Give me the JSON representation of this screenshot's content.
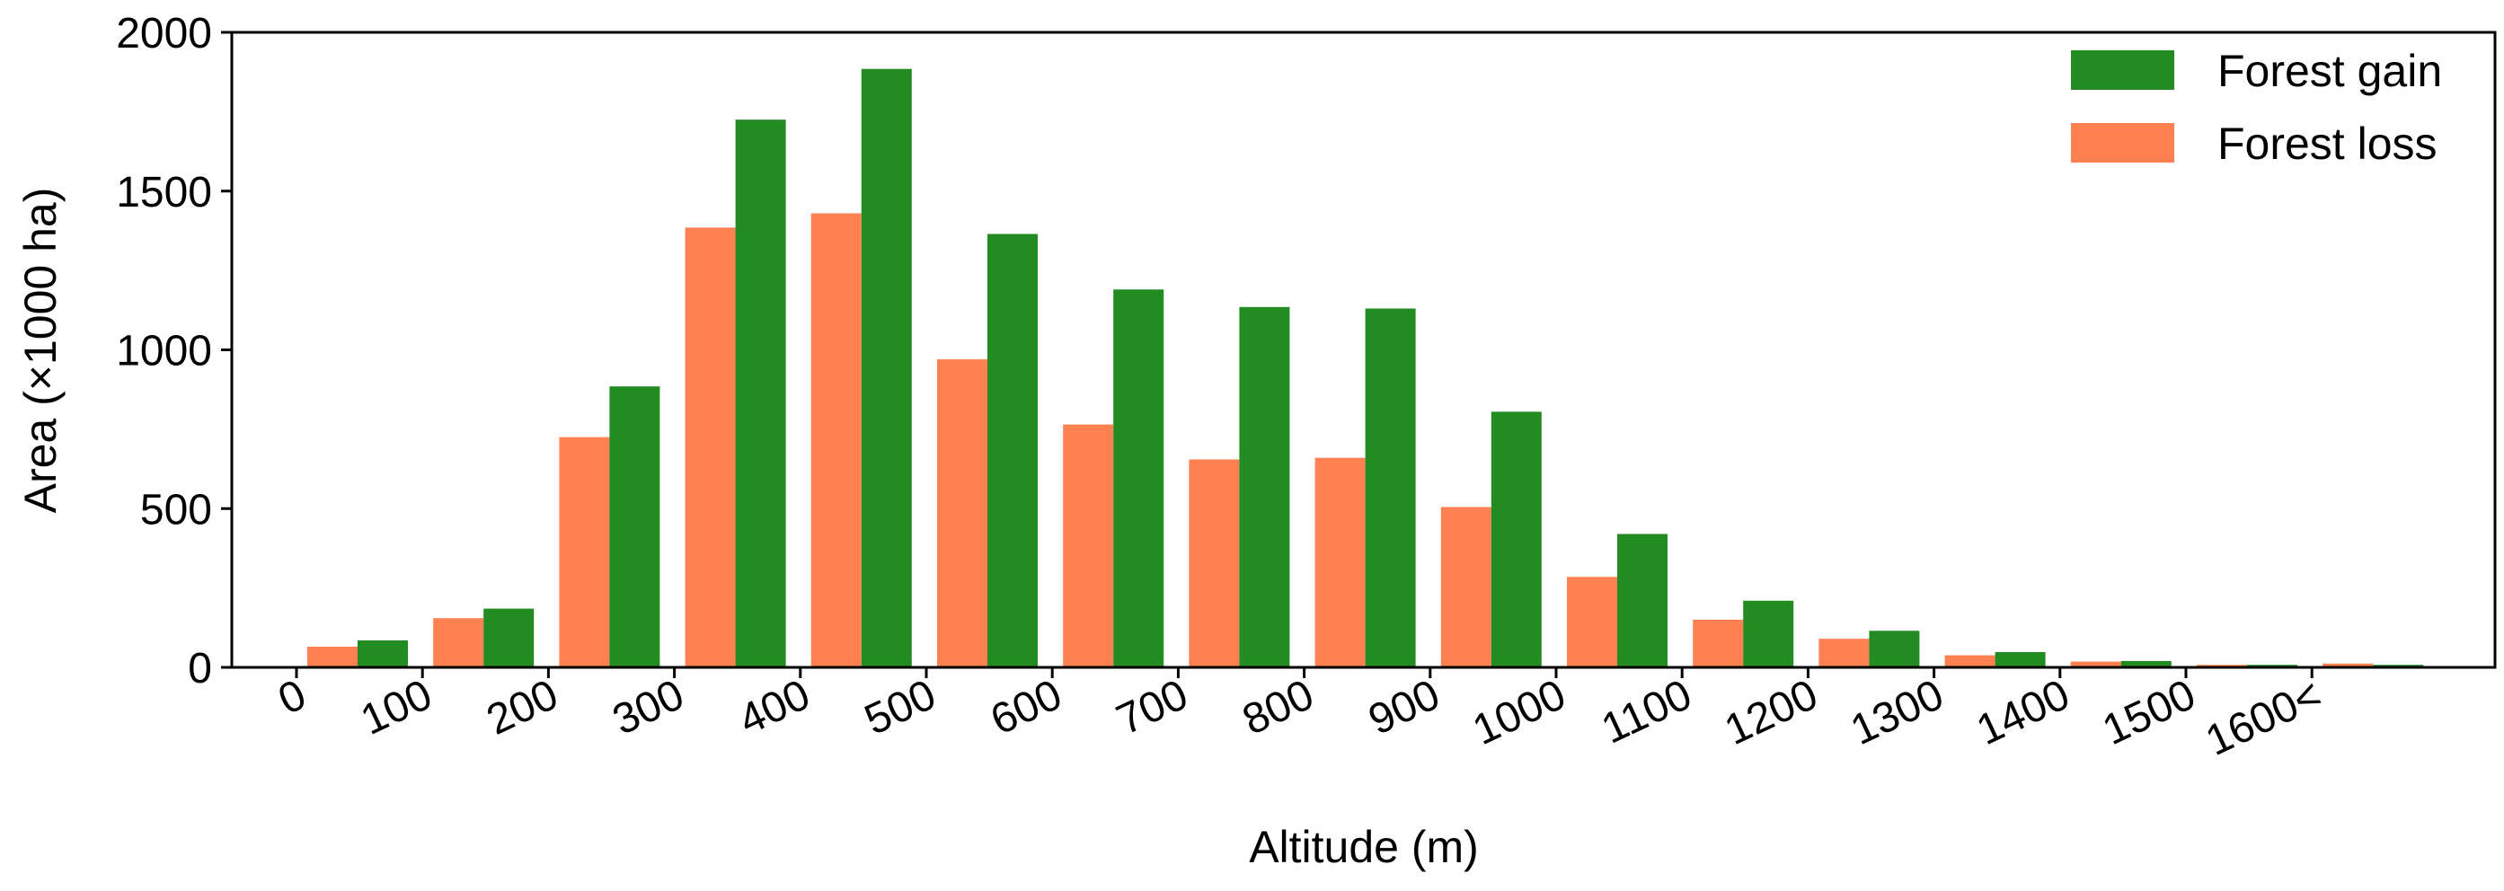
{
  "chart_data": {
    "type": "bar",
    "title": "",
    "xlabel": "Altitude (m)",
    "ylabel": "Area (×1000 ha)",
    "ylim": [
      0,
      2000
    ],
    "yticks": [
      0,
      500,
      1000,
      1500,
      2000
    ],
    "x_tick_labels": [
      "0",
      "100",
      "200",
      "300",
      "400",
      "500",
      "600",
      "700",
      "800",
      "900",
      "1000",
      "1100",
      "1200",
      "1300",
      "1400",
      "1500",
      "1600<"
    ],
    "grid": false,
    "legend_position": "top-right",
    "series": [
      {
        "name": "Forest loss",
        "color": "#FF8050",
        "values": [
          65,
          155,
          725,
          1385,
          1430,
          970,
          765,
          655,
          660,
          505,
          285,
          150,
          90,
          38,
          18,
          8,
          12
        ]
      },
      {
        "name": "Forest gain",
        "color": "#228B22",
        "values": [
          85,
          185,
          885,
          1725,
          1885,
          1365,
          1190,
          1135,
          1130,
          805,
          420,
          210,
          115,
          48,
          20,
          8,
          8
        ]
      }
    ],
    "legend": [
      {
        "label": "Forest gain",
        "color": "#228B22"
      },
      {
        "label": "Forest loss",
        "color": "#FF8050"
      }
    ]
  }
}
